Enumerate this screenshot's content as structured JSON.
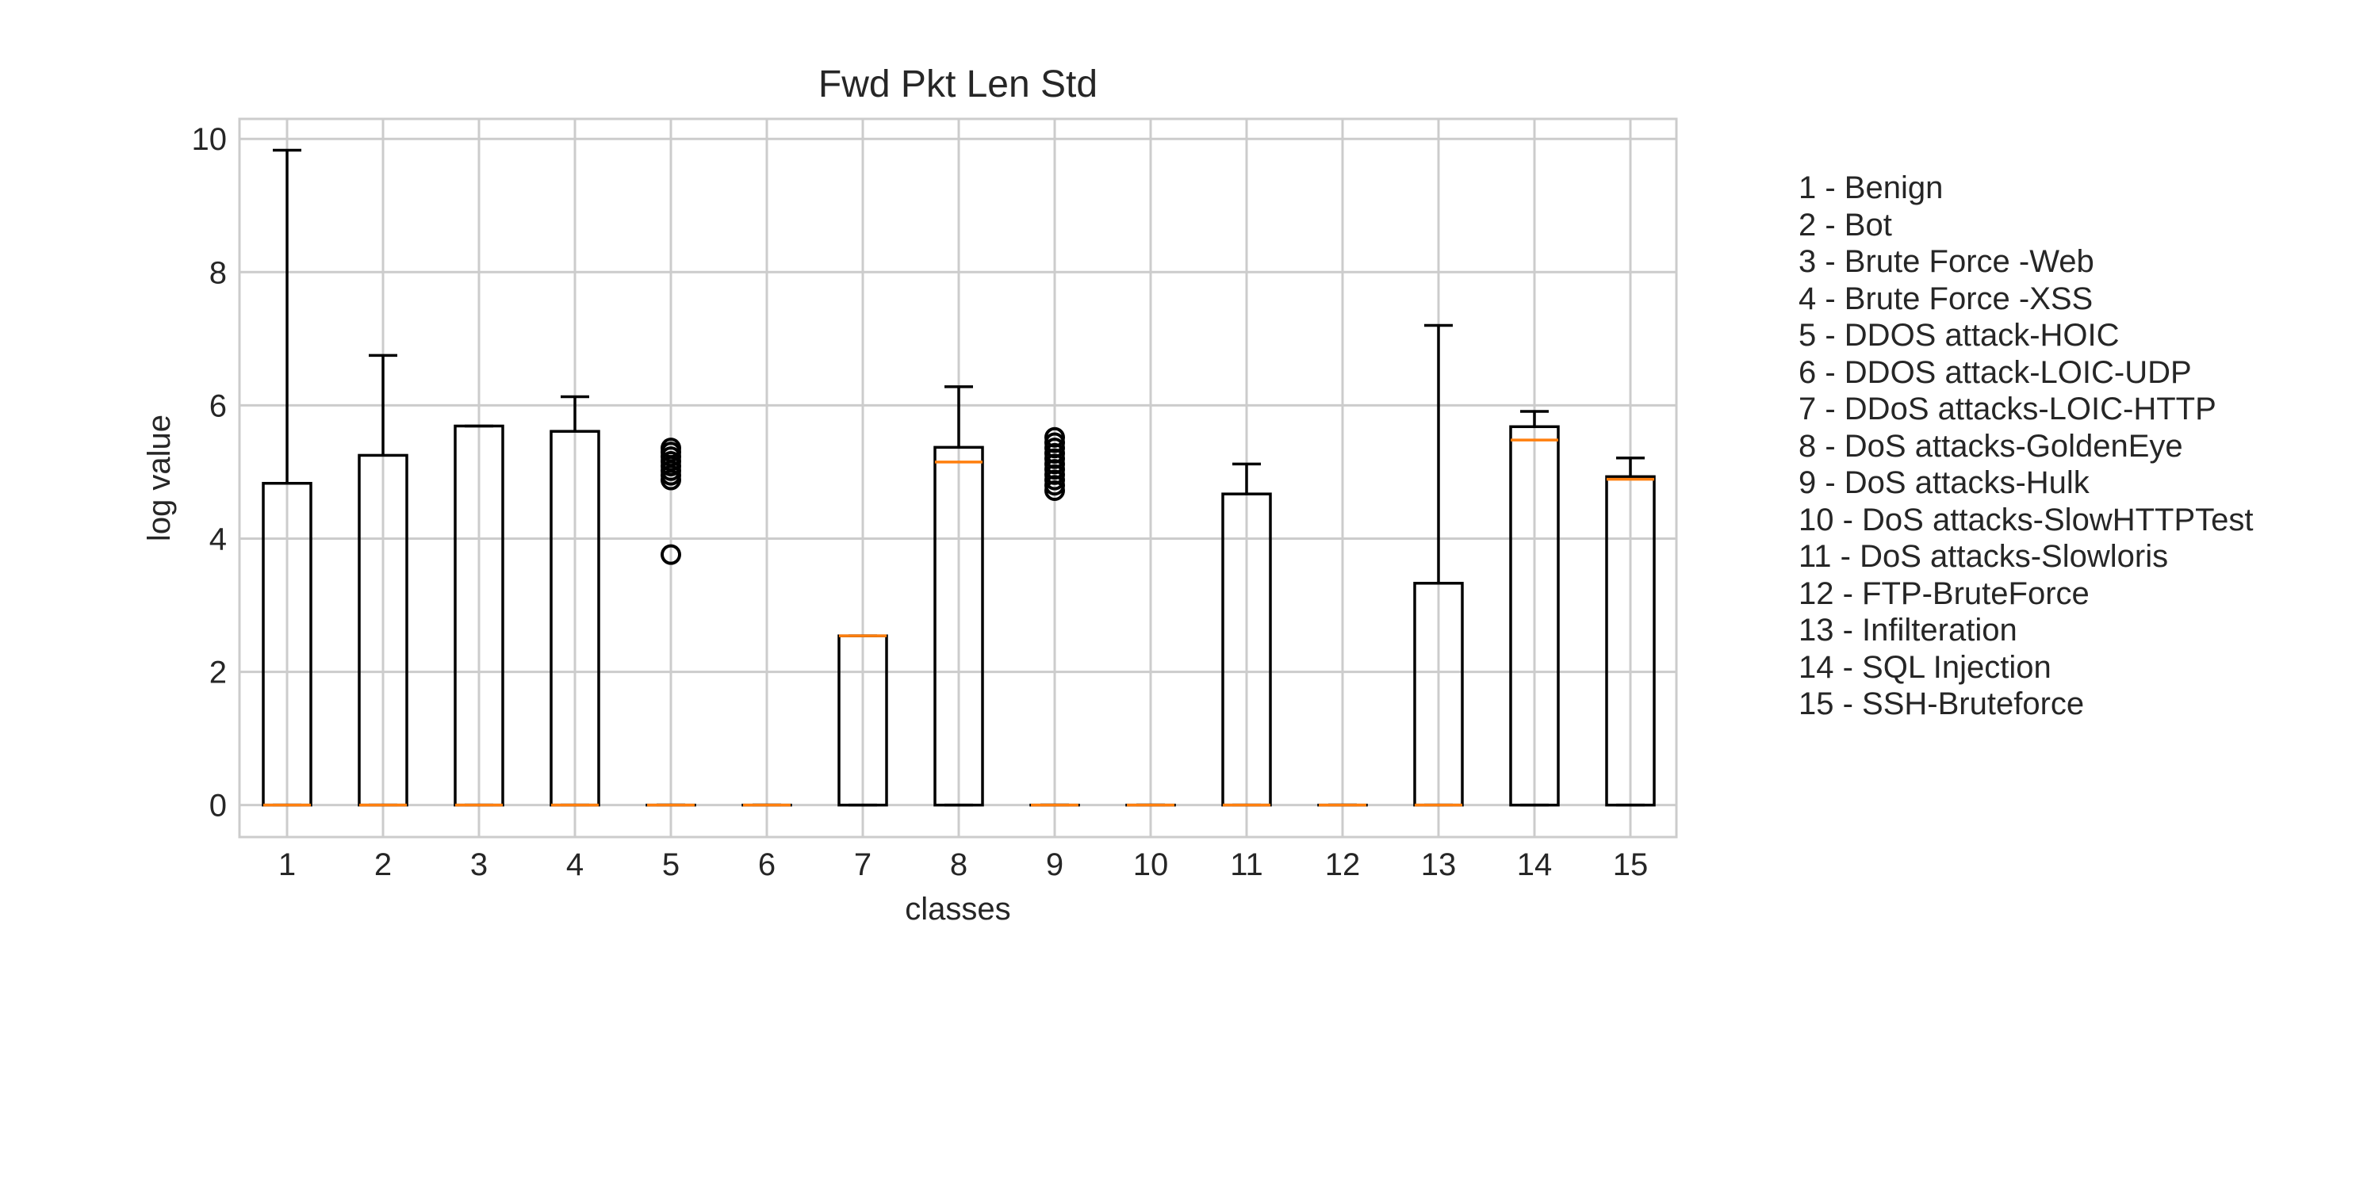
{
  "chart_data": {
    "type": "box",
    "title": "Fwd Pkt Len Std",
    "xlabel": "classes",
    "ylabel": "log value",
    "categories": [
      "1",
      "2",
      "3",
      "4",
      "5",
      "6",
      "7",
      "8",
      "9",
      "10",
      "11",
      "12",
      "13",
      "14",
      "15"
    ],
    "ylim": [
      -0.48,
      10.3
    ],
    "yticks": [
      0,
      2,
      4,
      6,
      8,
      10
    ],
    "grid": true,
    "boxes": [
      {
        "category": "1",
        "q1": 0,
        "median": 0,
        "q3": 4.83,
        "whisker_low": 0,
        "whisker_high": 9.83,
        "outliers": []
      },
      {
        "category": "2",
        "q1": 0,
        "median": 0,
        "q3": 5.25,
        "whisker_low": 0,
        "whisker_high": 6.75,
        "outliers": []
      },
      {
        "category": "3",
        "q1": 0,
        "median": 0,
        "q3": 5.69,
        "whisker_low": 0,
        "whisker_high": 5.69,
        "outliers": []
      },
      {
        "category": "4",
        "q1": 0,
        "median": 0,
        "q3": 5.61,
        "whisker_low": 0,
        "whisker_high": 6.13,
        "outliers": []
      },
      {
        "category": "5",
        "q1": 0,
        "median": 0,
        "q3": 0,
        "whisker_low": 0,
        "whisker_high": 0,
        "outliers": [
          3.76,
          4.88,
          4.95,
          5.02,
          5.09,
          5.16,
          5.23,
          5.3,
          5.36
        ]
      },
      {
        "category": "6",
        "q1": 0,
        "median": 0,
        "q3": 0,
        "whisker_low": 0,
        "whisker_high": 0,
        "outliers": []
      },
      {
        "category": "7",
        "q1": 0,
        "median": 2.54,
        "q3": 2.54,
        "whisker_low": 0,
        "whisker_high": 2.54,
        "outliers": []
      },
      {
        "category": "8",
        "q1": 0,
        "median": 5.15,
        "q3": 5.37,
        "whisker_low": 0,
        "whisker_high": 6.28,
        "outliers": []
      },
      {
        "category": "9",
        "q1": 0,
        "median": 0,
        "q3": 0,
        "whisker_low": 0,
        "whisker_high": 0,
        "outliers": [
          4.72,
          4.8,
          4.88,
          4.96,
          5.04,
          5.12,
          5.2,
          5.28,
          5.36,
          5.44,
          5.52
        ]
      },
      {
        "category": "10",
        "q1": 0,
        "median": 0,
        "q3": 0,
        "whisker_low": 0,
        "whisker_high": 0,
        "outliers": []
      },
      {
        "category": "11",
        "q1": 0,
        "median": 0,
        "q3": 4.67,
        "whisker_low": 0,
        "whisker_high": 5.12,
        "outliers": []
      },
      {
        "category": "12",
        "q1": 0,
        "median": 0,
        "q3": 0,
        "whisker_low": 0,
        "whisker_high": 0,
        "outliers": []
      },
      {
        "category": "13",
        "q1": 0,
        "median": 0,
        "q3": 3.33,
        "whisker_low": 0,
        "whisker_high": 7.2,
        "outliers": []
      },
      {
        "category": "14",
        "q1": 0,
        "median": 5.48,
        "q3": 5.68,
        "whisker_low": 0,
        "whisker_high": 5.91,
        "outliers": []
      },
      {
        "category": "15",
        "q1": 0,
        "median": 4.89,
        "q3": 4.93,
        "whisker_low": 0,
        "whisker_high": 5.21,
        "outliers": []
      }
    ],
    "legend": [
      "1 - Benign",
      "2 - Bot",
      "3 - Brute Force -Web",
      "4 - Brute Force -XSS",
      "5 - DDOS attack-HOIC",
      "6 - DDOS attack-LOIC-UDP",
      "7 - DDoS attacks-LOIC-HTTP",
      "8 - DoS attacks-GoldenEye",
      "9 - DoS attacks-Hulk",
      "10 - DoS attacks-SlowHTTPTest",
      "11 - DoS attacks-Slowloris",
      "12 - FTP-BruteForce",
      "13 - Infilteration",
      "14 - SQL Injection",
      "15 - SSH-Bruteforce"
    ],
    "legend_placement": "right",
    "colors": {
      "box": "#000000",
      "median": "#ff7f0e",
      "grid": "#cccccc",
      "frame": "#cccccc"
    }
  }
}
